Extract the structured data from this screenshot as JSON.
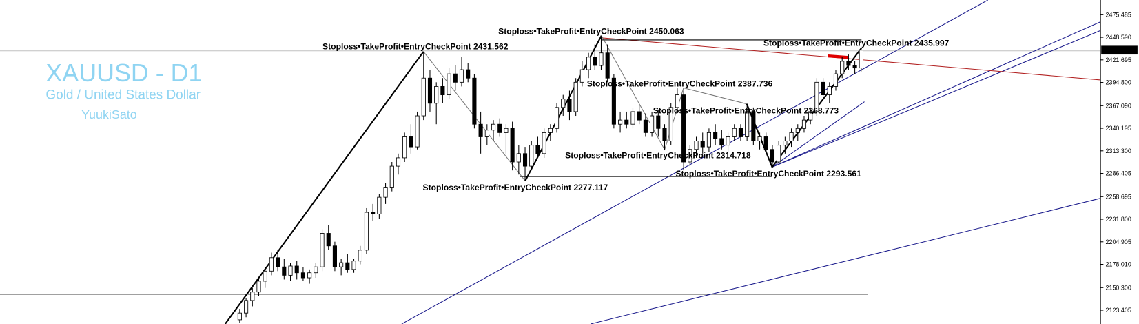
{
  "chart_data": {
    "type": "candlestick",
    "title": "XAUUSD - D1",
    "subtitle": "Gold / United States Dollar",
    "author": "YuukiSato",
    "up_color": "#ffffff",
    "down_color": "#000000",
    "ylim": [
      2107,
      2493
    ],
    "yticks": [
      2475.485,
      {
        "value": 2448.59,
        "label": "2448.590"
      },
      2421.695,
      {
        "value": 2394.8,
        "label": "2394.800"
      },
      {
        "value": 2367.09,
        "label": "2367.090"
      },
      2340.195,
      {
        "value": 2313.3,
        "label": "2313.300"
      },
      2286.405,
      2258.695,
      {
        "value": 2231.8,
        "label": "2231.800"
      },
      2204.905,
      {
        "value": 2178.01,
        "label": "2178.010"
      },
      {
        "value": 2150.3,
        "label": "2150.300"
      },
      2123.405
    ],
    "current_price": 2433.271,
    "annotations": [
      "Stoploss•TakeProfit•EntryCheckPoint 2431.562",
      "Stoploss•TakeProfit•EntryCheckPoint 2450.063",
      "Stoploss•TakeProfit•EntryCheckPoint 2435.997",
      "Stoploss•TakeProfit•EntryCheckPoint 2387.736",
      "Stoploss•TakeProfit•EntryCheckPoint 2368.773",
      "Stoploss•TakeProfit•EntryCheckPoint 2314.718",
      "Stoploss•TakeProfit•EntryCheckPoint 2293.561",
      "Stoploss•TakeProfit•EntryCheckPoint 2277.117"
    ],
    "candles": [
      [
        2112,
        2125,
        2108,
        2120
      ],
      [
        2120,
        2138,
        2115,
        2135
      ],
      [
        2135,
        2150,
        2128,
        2145
      ],
      [
        2145,
        2162,
        2140,
        2158
      ],
      [
        2158,
        2175,
        2150,
        2170
      ],
      [
        2170,
        2192,
        2165,
        2186
      ],
      [
        2186,
        2195,
        2170,
        2175
      ],
      [
        2175,
        2185,
        2160,
        2165
      ],
      [
        2165,
        2180,
        2158,
        2176
      ],
      [
        2176,
        2182,
        2160,
        2168
      ],
      [
        2168,
        2175,
        2158,
        2162
      ],
      [
        2162,
        2172,
        2155,
        2168
      ],
      [
        2168,
        2180,
        2162,
        2175
      ],
      [
        2175,
        2220,
        2170,
        2215
      ],
      [
        2215,
        2225,
        2195,
        2200
      ],
      [
        2200,
        2205,
        2170,
        2175
      ],
      [
        2175,
        2185,
        2165,
        2180
      ],
      [
        2180,
        2190,
        2168,
        2172
      ],
      [
        2172,
        2185,
        2168,
        2182
      ],
      [
        2182,
        2200,
        2178,
        2195
      ],
      [
        2195,
        2245,
        2190,
        2240
      ],
      [
        2240,
        2250,
        2230,
        2238
      ],
      [
        2238,
        2262,
        2232,
        2258
      ],
      [
        2258,
        2275,
        2250,
        2270
      ],
      [
        2270,
        2300,
        2265,
        2295
      ],
      [
        2295,
        2310,
        2285,
        2305
      ],
      [
        2305,
        2335,
        2300,
        2330
      ],
      [
        2330,
        2345,
        2310,
        2318
      ],
      [
        2318,
        2360,
        2315,
        2355
      ],
      [
        2355,
        2431.562,
        2350,
        2400
      ],
      [
        2400,
        2410,
        2360,
        2370
      ],
      [
        2370,
        2395,
        2345,
        2390
      ],
      [
        2390,
        2400,
        2370,
        2380
      ],
      [
        2380,
        2412,
        2375,
        2405
      ],
      [
        2405,
        2415,
        2385,
        2395
      ],
      [
        2395,
        2425,
        2390,
        2410
      ],
      [
        2410,
        2418,
        2395,
        2400
      ],
      [
        2400,
        2405,
        2340,
        2345
      ],
      [
        2345,
        2360,
        2310,
        2330
      ],
      [
        2330,
        2345,
        2320,
        2338
      ],
      [
        2338,
        2350,
        2325,
        2345
      ],
      [
        2345,
        2352,
        2330,
        2335
      ],
      [
        2335,
        2345,
        2310,
        2340
      ],
      [
        2340,
        2348,
        2290,
        2300
      ],
      [
        2300,
        2320,
        2285,
        2310
      ],
      [
        2310,
        2318,
        2277.117,
        2295
      ],
      [
        2295,
        2325,
        2290,
        2320
      ],
      [
        2320,
        2330,
        2305,
        2310
      ],
      [
        2310,
        2340,
        2305,
        2335
      ],
      [
        2335,
        2345,
        2325,
        2340
      ],
      [
        2340,
        2370,
        2335,
        2365
      ],
      [
        2365,
        2380,
        2355,
        2375
      ],
      [
        2375,
        2385,
        2350,
        2360
      ],
      [
        2360,
        2400,
        2355,
        2395
      ],
      [
        2395,
        2420,
        2390,
        2410
      ],
      [
        2410,
        2430,
        2400,
        2425
      ],
      [
        2425,
        2440,
        2410,
        2415
      ],
      [
        2415,
        2450.063,
        2410,
        2430
      ],
      [
        2430,
        2440,
        2395,
        2400
      ],
      [
        2400,
        2405,
        2340,
        2345
      ],
      [
        2345,
        2360,
        2335,
        2350
      ],
      [
        2350,
        2360,
        2340,
        2345
      ],
      [
        2345,
        2365,
        2340,
        2360
      ],
      [
        2360,
        2368,
        2345,
        2350
      ],
      [
        2350,
        2358,
        2330,
        2335
      ],
      [
        2335,
        2360,
        2330,
        2355
      ],
      [
        2355,
        2362,
        2330,
        2340
      ],
      [
        2340,
        2345,
        2314.718,
        2325
      ],
      [
        2325,
        2370,
        2320,
        2365
      ],
      [
        2365,
        2387.736,
        2360,
        2380
      ],
      [
        2380,
        2385,
        2290,
        2300
      ],
      [
        2300,
        2320,
        2295,
        2315
      ],
      [
        2315,
        2330,
        2305,
        2325
      ],
      [
        2325,
        2335,
        2310,
        2318
      ],
      [
        2318,
        2340,
        2312,
        2335
      ],
      [
        2335,
        2345,
        2320,
        2328
      ],
      [
        2328,
        2338,
        2315,
        2320
      ],
      [
        2320,
        2335,
        2312,
        2330
      ],
      [
        2330,
        2345,
        2325,
        2340
      ],
      [
        2340,
        2345,
        2325,
        2330
      ],
      [
        2330,
        2368.773,
        2325,
        2360
      ],
      [
        2360,
        2365,
        2320,
        2325
      ],
      [
        2325,
        2335,
        2315,
        2330
      ],
      [
        2330,
        2335,
        2310,
        2315
      ],
      [
        2315,
        2320,
        2293.561,
        2300
      ],
      [
        2300,
        2325,
        2298,
        2320
      ],
      [
        2320,
        2330,
        2310,
        2325
      ],
      [
        2325,
        2340,
        2318,
        2335
      ],
      [
        2335,
        2345,
        2325,
        2340
      ],
      [
        2340,
        2355,
        2335,
        2350
      ],
      [
        2350,
        2365,
        2345,
        2360
      ],
      [
        2360,
        2400,
        2355,
        2395
      ],
      [
        2395,
        2400,
        2375,
        2380
      ],
      [
        2380,
        2395,
        2370,
        2390
      ],
      [
        2390,
        2410,
        2385,
        2405
      ],
      [
        2405,
        2425,
        2400,
        2420
      ],
      [
        2420,
        2428,
        2410,
        2415
      ],
      [
        2415,
        2420,
        2405,
        2412
      ],
      [
        2412,
        2435.997,
        2408,
        2433.271
      ]
    ]
  }
}
